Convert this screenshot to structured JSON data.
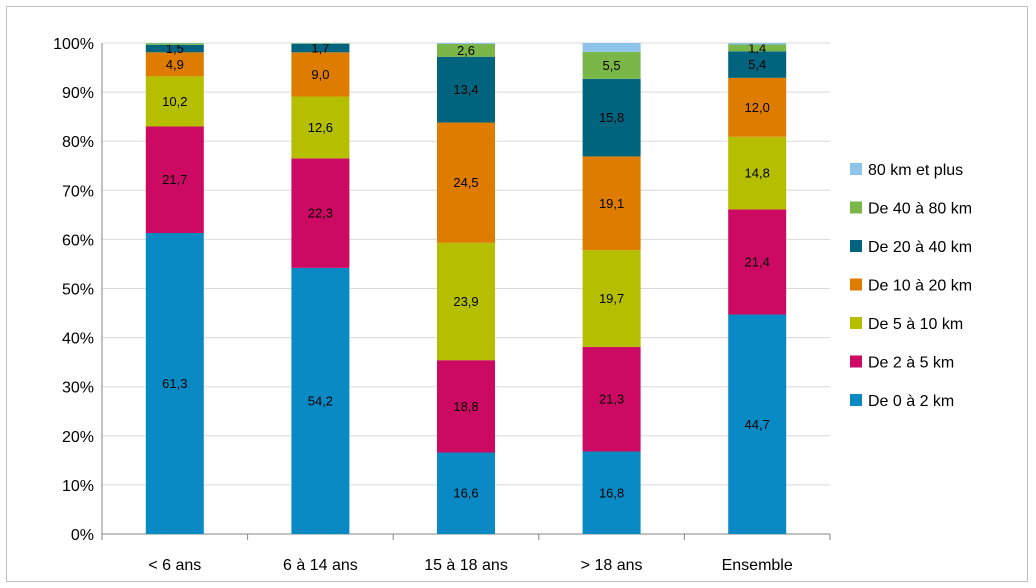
{
  "chart_data": {
    "type": "bar",
    "stacked": true,
    "percent": true,
    "categories": [
      "< 6 ans",
      "6 à 14 ans",
      "15 à 18 ans",
      "> 18 ans",
      "Ensemble"
    ],
    "series": [
      {
        "name": "De 0 à 2 km",
        "color": "#0a8ac4",
        "values": [
          61.3,
          54.2,
          16.6,
          16.8,
          44.7
        ],
        "labels": [
          "61,3",
          "54,2",
          "16,6",
          "16,8",
          "44,7"
        ]
      },
      {
        "name": "De 2 à 5 km",
        "color": "#cc0a63",
        "values": [
          21.7,
          22.3,
          18.8,
          21.3,
          21.4
        ],
        "labels": [
          "21,7",
          "22,3",
          "18,8",
          "21,3",
          "21,4"
        ]
      },
      {
        "name": "De 5 à 10 km",
        "color": "#b5bf00",
        "values": [
          10.2,
          12.6,
          23.9,
          19.7,
          14.8
        ],
        "labels": [
          "10,2",
          "12,6",
          "23,9",
          "19,7",
          "14,8"
        ]
      },
      {
        "name": "De 10 à 20 km",
        "color": "#de7c00",
        "values": [
          4.9,
          9.0,
          24.5,
          19.1,
          12.0
        ],
        "labels": [
          "4,9",
          "9,0",
          "24,5",
          "19,1",
          "12,0"
        ]
      },
      {
        "name": "De 20 à 40 km",
        "color": "#00647f",
        "values": [
          1.5,
          1.7,
          13.4,
          15.8,
          5.4
        ],
        "labels": [
          "1,5",
          "1,7",
          "13,4",
          "15,8",
          "5,4"
        ]
      },
      {
        "name": "De 40 à 80 km",
        "color": "#7ab648",
        "values": [
          0.3,
          0.1,
          2.6,
          5.5,
          1.4
        ],
        "labels": [
          "",
          "",
          "2,6",
          "5,5",
          "1,4"
        ]
      },
      {
        "name": "80 km et plus",
        "color": "#8ec3ea",
        "values": [
          0.1,
          0.1,
          0.2,
          1.8,
          0.3
        ],
        "labels": [
          "",
          "",
          "",
          "",
          ""
        ]
      }
    ],
    "y_ticks": [
      "0%",
      "10%",
      "20%",
      "30%",
      "40%",
      "50%",
      "60%",
      "70%",
      "80%",
      "90%",
      "100%"
    ],
    "ylim": [
      0,
      100
    ],
    "legend_position": "right",
    "grid": true
  }
}
